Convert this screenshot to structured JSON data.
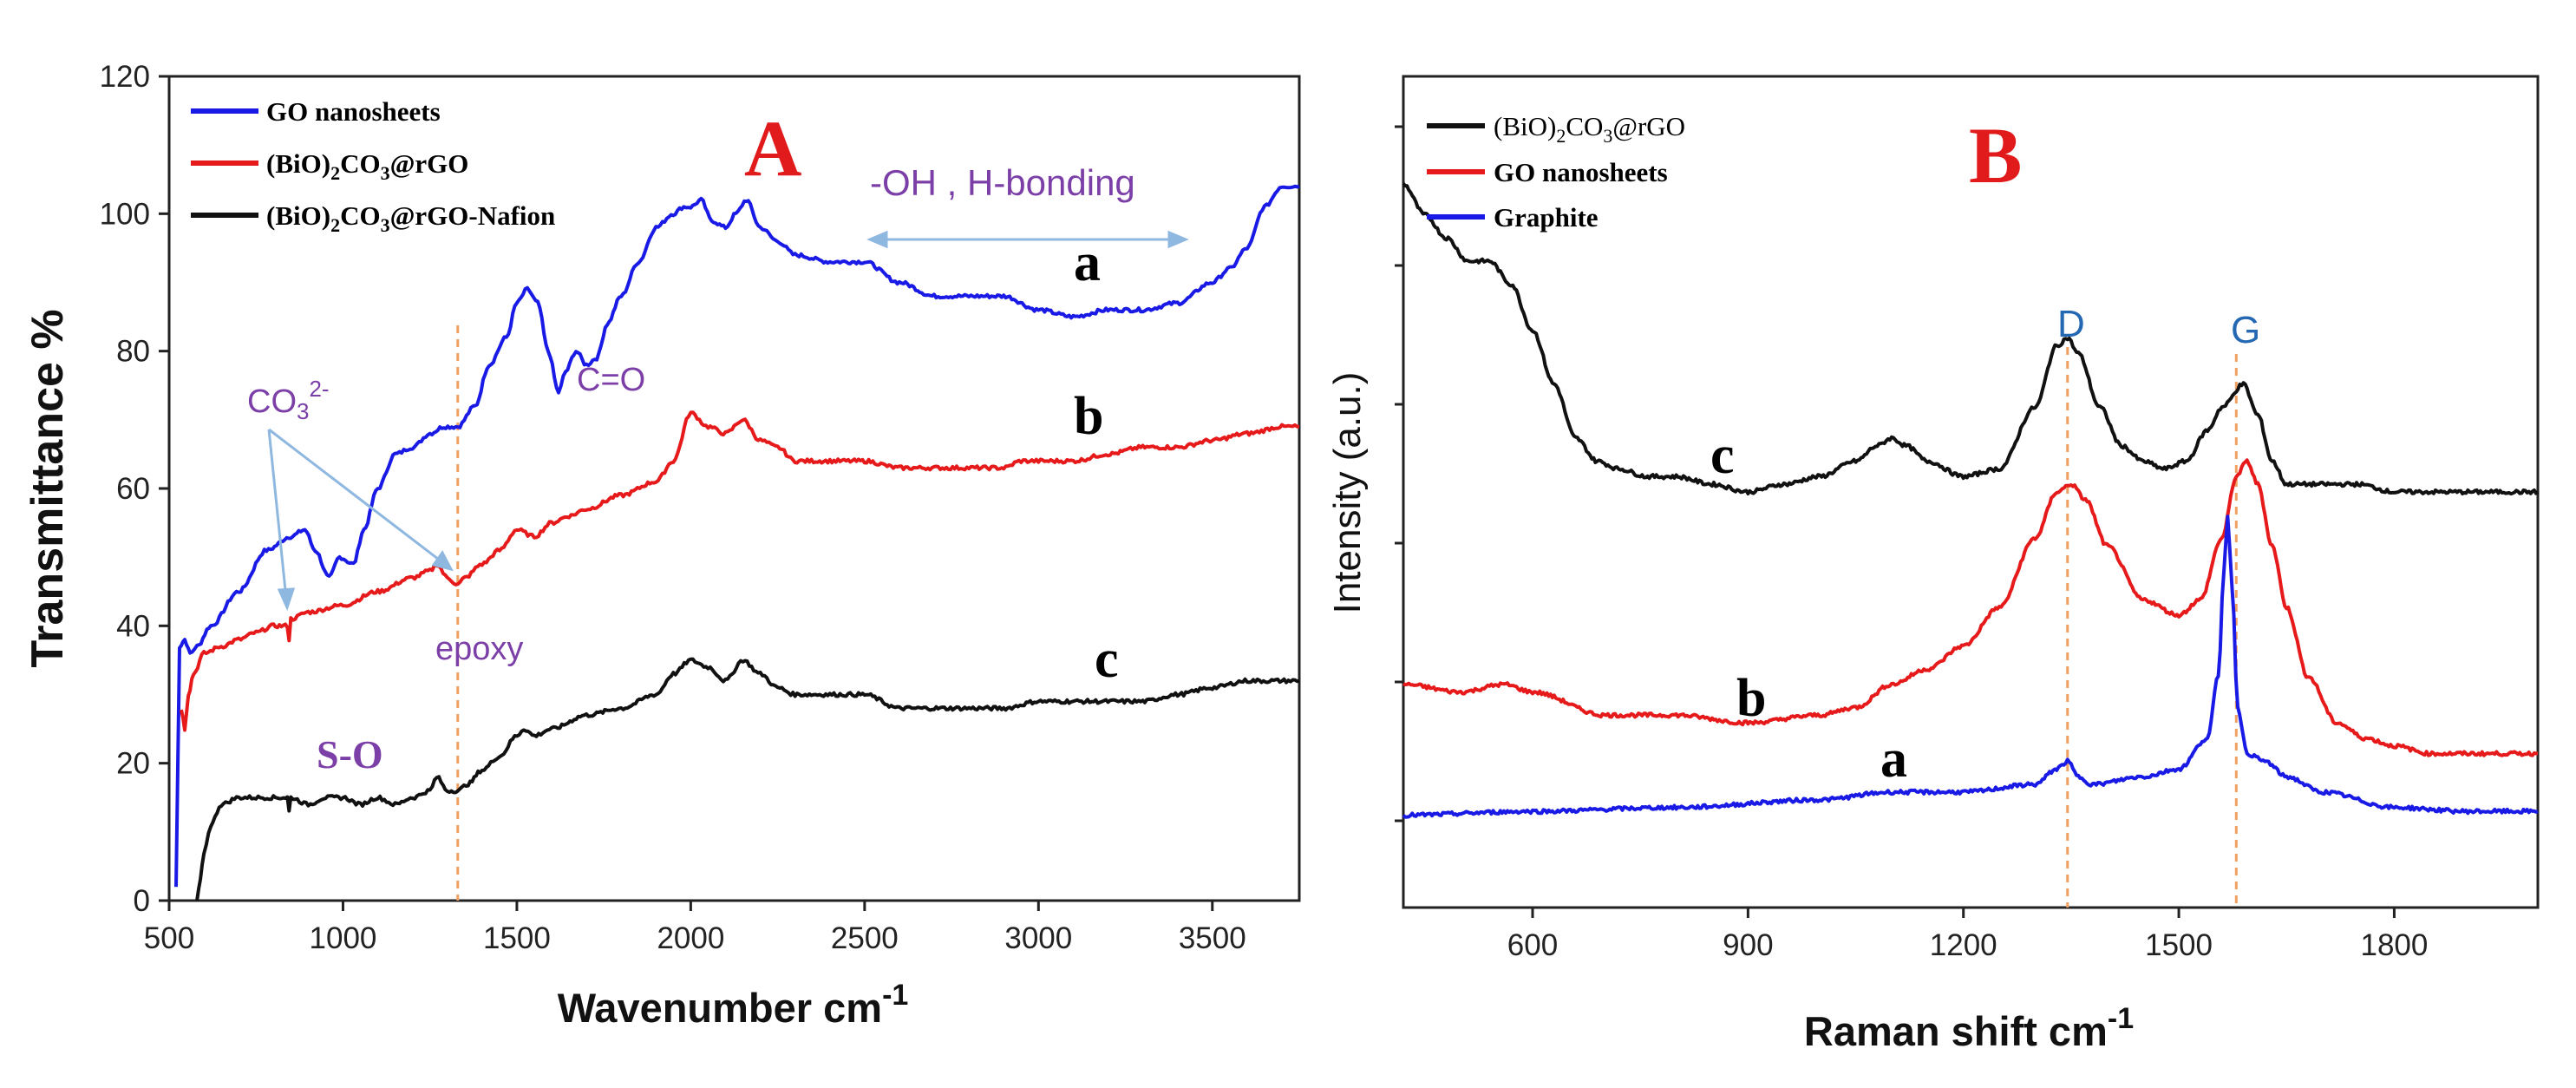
{
  "chart_data": [
    {
      "panel": "A",
      "type": "line",
      "xlabel": "Wavenumber cm",
      "xlabel_sup": "-1",
      "ylabel": "Transmittance %",
      "xlim": [
        500,
        3750
      ],
      "ylim": [
        0,
        120
      ],
      "xticks": [
        "500",
        "1000",
        "1500",
        "2000",
        "2500",
        "3000",
        "3500"
      ],
      "yticks": [
        "0",
        "20",
        "40",
        "60",
        "80",
        "100",
        "120"
      ],
      "legend": [
        {
          "label": "GO nanosheets",
          "color": "#1a1ae6"
        },
        {
          "label_pre": "(BiO)",
          "label_sub1": "2",
          "label_mid": "CO",
          "label_sub2": "3",
          "label_post": "@rGO",
          "color": "#e61a1a"
        },
        {
          "label_pre": "(BiO)",
          "label_sub1": "2",
          "label_mid": "CO",
          "label_sub2": "3",
          "label_post": "@rGO-Nafion",
          "color": "#111111"
        }
      ],
      "series": [
        {
          "name": "GO nanosheets",
          "letter": "a",
          "color": "#1a1ae6",
          "x": [
            520,
            530,
            545,
            560,
            580,
            620,
            700,
            780,
            850,
            890,
            920,
            960,
            990,
            1030,
            1060,
            1100,
            1150,
            1200,
            1250,
            1290,
            1330,
            1380,
            1420,
            1470,
            1500,
            1530,
            1560,
            1590,
            1620,
            1640,
            1670,
            1700,
            1730,
            1760,
            1800,
            1850,
            1900,
            1950,
            1980,
            2000,
            2030,
            2060,
            2100,
            2130,
            2160,
            2200,
            2250,
            2300,
            2400,
            2500,
            2600,
            2700,
            2800,
            2900,
            3000,
            3100,
            3200,
            3300,
            3400,
            3500,
            3550,
            3600,
            3650,
            3700,
            3720,
            3750
          ],
          "y": [
            2,
            37,
            38,
            36,
            37,
            40,
            45,
            51,
            53,
            54,
            51,
            47,
            50,
            49,
            54,
            60,
            65,
            66,
            68,
            69,
            69,
            72,
            78,
            82,
            87,
            89,
            87,
            80,
            74,
            77,
            80,
            78,
            79,
            84,
            88,
            93,
            98,
            100,
            101,
            101,
            102,
            99,
            98,
            100,
            102,
            98,
            96,
            94,
            93,
            93,
            90,
            88,
            88,
            88,
            86,
            85,
            86,
            86,
            87,
            90,
            92,
            95,
            101,
            104,
            104,
            104
          ]
        },
        {
          "name": "(BiO)2CO3@rGO",
          "letter": "b",
          "color": "#e61a1a",
          "x": [
            535,
            545,
            555,
            570,
            600,
            650,
            700,
            750,
            800,
            840,
            845,
            850,
            900,
            1000,
            1100,
            1200,
            1250,
            1270,
            1300,
            1330,
            1350,
            1400,
            1450,
            1500,
            1550,
            1600,
            1650,
            1700,
            1800,
            1900,
            1950,
            2000,
            2050,
            2100,
            2150,
            2200,
            2250,
            2300,
            2400,
            2500,
            2600,
            2700,
            2800,
            2900,
            2950,
            3000,
            3100,
            3200,
            3300,
            3400,
            3500,
            3600,
            3700,
            3750
          ],
          "y": [
            28,
            25,
            30,
            33,
            36,
            37,
            38,
            39,
            40,
            40,
            38,
            41,
            42,
            43,
            45,
            47,
            48,
            49,
            47,
            46,
            47,
            49,
            51,
            54,
            53,
            55,
            56,
            57,
            59,
            61,
            64,
            71,
            69,
            68,
            70,
            67,
            66,
            64,
            64,
            64,
            63,
            63,
            63,
            63,
            64,
            64,
            64,
            65,
            66,
            66,
            67,
            68,
            69,
            69
          ]
        },
        {
          "name": "(BiO)2CO3@rGO-Nafion",
          "letter": "c",
          "color": "#111111",
          "x": [
            580,
            590,
            600,
            620,
            650,
            700,
            750,
            800,
            840,
            845,
            850,
            900,
            950,
            1000,
            1050,
            1100,
            1150,
            1200,
            1250,
            1270,
            1300,
            1330,
            1360,
            1400,
            1450,
            1500,
            1520,
            1550,
            1600,
            1700,
            1800,
            1900,
            1950,
            2000,
            2050,
            2100,
            2150,
            2200,
            2250,
            2300,
            2400,
            2500,
            2600,
            2700,
            2800,
            2900,
            3000,
            3100,
            3200,
            3300,
            3400,
            3500,
            3600,
            3700,
            3750
          ],
          "y": [
            0,
            3,
            7,
            11,
            14,
            15,
            15,
            15,
            15,
            13,
            15,
            14,
            15,
            15,
            14,
            15,
            14,
            15,
            16,
            18,
            16,
            16,
            17,
            19,
            21,
            24,
            25,
            24,
            25,
            27,
            28,
            30,
            33,
            35,
            34,
            32,
            35,
            33,
            31,
            30,
            30,
            30,
            28,
            28,
            28,
            28,
            29,
            29,
            29,
            29,
            30,
            31,
            32,
            32,
            32
          ]
        }
      ],
      "annotations": {
        "panel_letter": "A",
        "oh_label": "-OH , H-bonding",
        "co3_pre": "CO",
        "co3_sub": "3",
        "co3_sup": "2-",
        "co_label": "C=O",
        "epoxy_label": "epoxy",
        "so_label": "S-O",
        "dashed_line_x": 1330,
        "letters": [
          "a",
          "b",
          "c"
        ]
      }
    },
    {
      "panel": "B",
      "type": "line",
      "xlabel": "Raman shift cm",
      "xlabel_sup": "-1",
      "ylabel": "Intensity (a.u.)",
      "xlim": [
        420,
        2000
      ],
      "xticks": [
        "600",
        "900",
        "1200",
        "1500",
        "1800"
      ],
      "ytick_labels": "none",
      "legend": [
        {
          "label_pre": "(BiO)",
          "label_sub1": "2",
          "label_mid": "CO",
          "label_sub2": "3",
          "label_post": "@rGO",
          "color": "#111111"
        },
        {
          "label": "GO nanosheets",
          "color": "#e61a1a"
        },
        {
          "label": "Graphite",
          "color": "#1a1ae6"
        }
      ],
      "series": [
        {
          "name": "(BiO)2CO3@rGO",
          "letter": "c",
          "color": "#111111",
          "x": [
            420,
            450,
            480,
            510,
            540,
            570,
            600,
            630,
            660,
            690,
            720,
            760,
            800,
            850,
            900,
            950,
            1000,
            1050,
            1080,
            1100,
            1120,
            1150,
            1200,
            1250,
            1300,
            1330,
            1345,
            1360,
            1390,
            1420,
            1450,
            1480,
            1510,
            1540,
            1560,
            1590,
            1610,
            1630,
            1650,
            1700,
            1750,
            1800,
            1850,
            1900,
            1950,
            2000
          ],
          "y": [
            8.2,
            7.8,
            7.5,
            7.2,
            7.2,
            6.9,
            6.3,
            5.6,
            4.9,
            4.6,
            4.5,
            4.4,
            4.4,
            4.3,
            4.2,
            4.3,
            4.4,
            4.6,
            4.8,
            4.9,
            4.8,
            4.6,
            4.4,
            4.5,
            5.3,
            6.1,
            6.2,
            6.0,
            5.3,
            4.8,
            4.6,
            4.5,
            4.6,
            5.0,
            5.3,
            5.6,
            5.2,
            4.6,
            4.3,
            4.3,
            4.3,
            4.2,
            4.2,
            4.2,
            4.2,
            4.2
          ]
        },
        {
          "name": "GO nanosheets",
          "letter": "b",
          "color": "#e61a1a",
          "x": [
            420,
            500,
            560,
            600,
            700,
            800,
            900,
            1000,
            1050,
            1100,
            1150,
            1200,
            1250,
            1300,
            1330,
            1350,
            1370,
            1400,
            1450,
            1500,
            1530,
            1560,
            1580,
            1595,
            1610,
            1630,
            1650,
            1680,
            1720,
            1760,
            1800,
            1850,
            1900,
            1950,
            2000
          ],
          "y": [
            1.7,
            1.6,
            1.7,
            1.6,
            1.3,
            1.3,
            1.2,
            1.3,
            1.4,
            1.7,
            1.9,
            2.2,
            2.7,
            3.6,
            4.2,
            4.3,
            4.1,
            3.5,
            2.8,
            2.6,
            2.8,
            3.6,
            4.4,
            4.6,
            4.3,
            3.5,
            2.7,
            1.8,
            1.2,
            1.0,
            0.9,
            0.8,
            0.8,
            0.8,
            0.8
          ]
        },
        {
          "name": "Graphite",
          "letter": "a",
          "color": "#1a1ae6",
          "x": [
            420,
            600,
            800,
            1000,
            1100,
            1200,
            1300,
            1330,
            1345,
            1360,
            1380,
            1450,
            1500,
            1540,
            1555,
            1563,
            1568,
            1574,
            1582,
            1595,
            1620,
            1650,
            1700,
            1800,
            1900,
            2000
          ],
          "y": [
            0.0,
            0.05,
            0.1,
            0.2,
            0.3,
            0.3,
            0.4,
            0.6,
            0.7,
            0.5,
            0.4,
            0.5,
            0.6,
            1.0,
            1.8,
            3.2,
            3.9,
            3.0,
            1.4,
            0.8,
            0.7,
            0.5,
            0.3,
            0.1,
            0.05,
            0.05
          ]
        }
      ],
      "annotations": {
        "panel_letter": "B",
        "d_label": "D",
        "g_label": "G",
        "d_line_x": 1345,
        "g_line_x": 1580,
        "letters": [
          "a",
          "b",
          "c"
        ]
      }
    }
  ]
}
